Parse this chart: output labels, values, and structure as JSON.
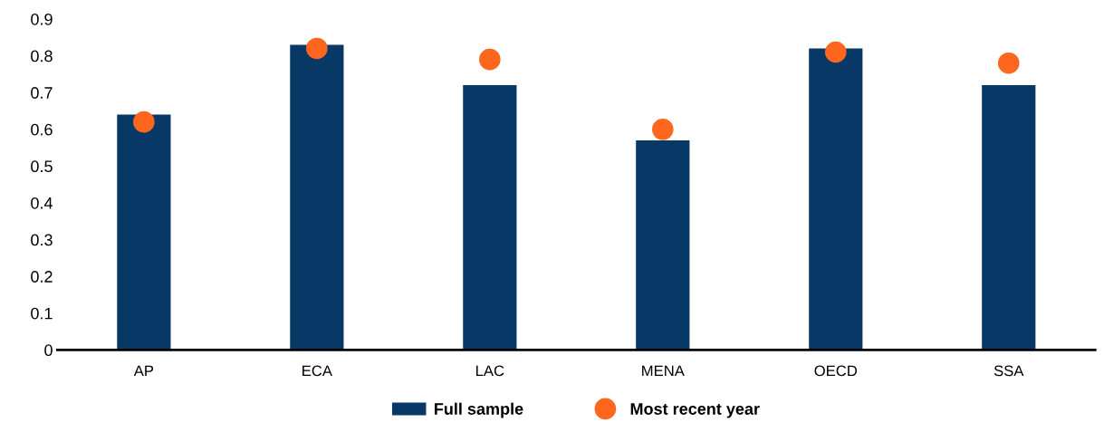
{
  "chart_data": {
    "type": "bar",
    "categories": [
      "AP",
      "ECA",
      "LAC",
      "MENA",
      "OECD",
      "SSA"
    ],
    "series": [
      {
        "name": "Full sample",
        "type": "bar",
        "color": "#083866",
        "values": [
          0.64,
          0.83,
          0.72,
          0.57,
          0.82,
          0.72
        ]
      },
      {
        "name": "Most recent year",
        "type": "scatter",
        "color": "#ff671f",
        "values": [
          0.62,
          0.82,
          0.79,
          0.6,
          0.81,
          0.78
        ]
      }
    ],
    "ylim": [
      0,
      0.9
    ],
    "yticks": [
      0,
      0.1,
      0.2,
      0.3,
      0.4,
      0.5,
      0.6,
      0.7,
      0.8,
      0.9
    ],
    "grid": false,
    "legend": "bottom",
    "marker": "circle"
  }
}
